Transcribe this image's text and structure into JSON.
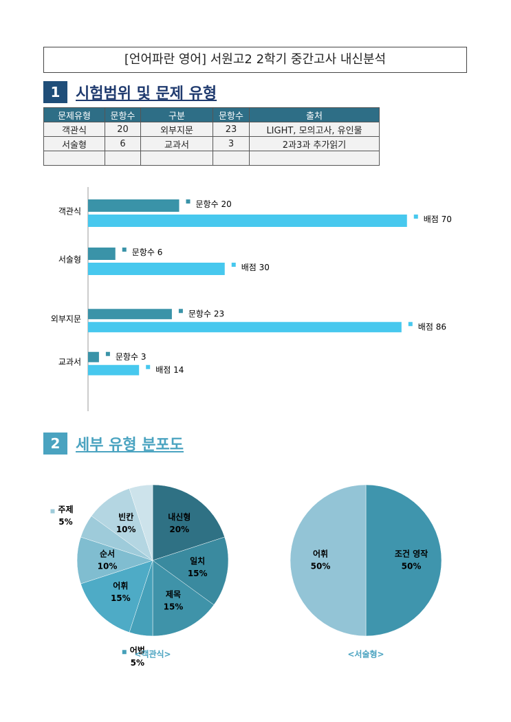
{
  "title": "[언어파란 영어] 서원고2 2학기 중간고사 내신분석",
  "sections": [
    {
      "number": "1",
      "heading": "시험범위 및 문제 유형"
    },
    {
      "number": "2",
      "heading": "세부 유형 분포도"
    }
  ],
  "table": {
    "columns": [
      "문제유형",
      "문항수",
      "구분",
      "문항수",
      "출처"
    ],
    "rows": [
      [
        "객관식",
        20,
        "외부지문",
        23,
        "LIGHT, 모의고사, 유인물"
      ],
      [
        "서술형",
        6,
        "교과서",
        3,
        "2과3과 추가읽기"
      ]
    ]
  },
  "chart_data": [
    {
      "type": "hbar",
      "categories": [
        "객관식",
        "서술형"
      ],
      "xlim": [
        0,
        80
      ],
      "series": [
        {
          "name": "문항수",
          "color": "#3a93a8",
          "values": [
            20,
            6
          ]
        },
        {
          "name": "배점",
          "color": "#47c8ee",
          "values": [
            70,
            30
          ]
        }
      ]
    },
    {
      "type": "hbar",
      "categories": [
        "외부지문",
        "교과서"
      ],
      "xlim": [
        0,
        100
      ],
      "series": [
        {
          "name": "문항수",
          "color": "#3a93a8",
          "values": [
            23,
            3
          ]
        },
        {
          "name": "배점",
          "color": "#47c8ee",
          "values": [
            86,
            14
          ]
        }
      ]
    },
    {
      "type": "pie",
      "title": "<객관식>",
      "categories": [
        "내신형",
        "일치",
        "제목",
        "어법",
        "어휘",
        "순서",
        "주제",
        "빈칸",
        null
      ],
      "values": [
        20,
        15,
        15,
        5,
        15,
        10,
        5,
        10,
        5
      ],
      "value_labels": [
        "20%",
        "15%",
        "15%",
        "5%",
        "15%",
        "10%",
        "5%",
        "10%",
        null
      ],
      "colors": [
        "#2f7184",
        "#3a8a9f",
        "#3f93a9",
        "#45a0b9",
        "#4eabc6",
        "#80bdd0",
        "#9ecbda",
        "#b4d6e2",
        "#cde3eb"
      ]
    },
    {
      "type": "pie",
      "title": "<서술형>",
      "categories": [
        "조건 영작",
        "어휘"
      ],
      "values": [
        50,
        50
      ],
      "value_labels": [
        "50%",
        "50%"
      ],
      "colors": [
        "#3f95ad",
        "#93c4d6"
      ]
    }
  ]
}
